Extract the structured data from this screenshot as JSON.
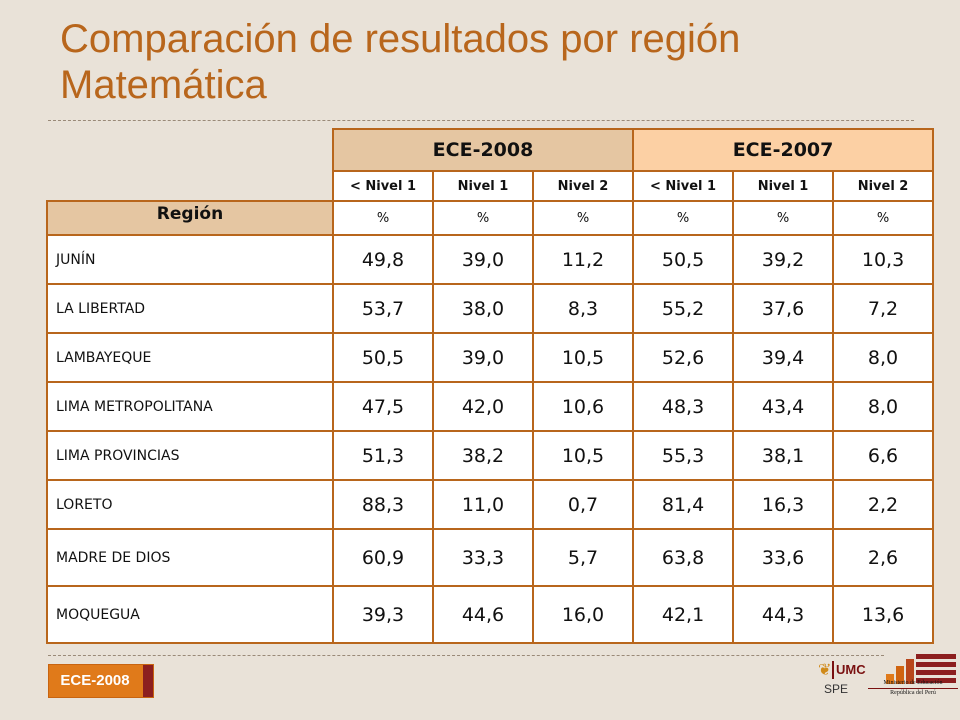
{
  "slide": {
    "title_line1": "Comparación de resultados por región",
    "title_line2": "Matemática"
  },
  "table": {
    "groups": [
      "ECE-2008",
      "ECE-2007"
    ],
    "levels": [
      "< Nivel 1",
      "Nivel 1",
      "Nivel 2",
      "< Nivel 1",
      "Nivel 1",
      "Nivel 2"
    ],
    "region_header": "Región",
    "unit": "%",
    "rows": [
      {
        "region": "JUNÍN",
        "values": [
          "49,8",
          "39,0",
          "11,2",
          "50,5",
          "39,2",
          "10,3"
        ]
      },
      {
        "region": "LA LIBERTAD",
        "values": [
          "53,7",
          "38,0",
          "8,3",
          "55,2",
          "37,6",
          "7,2"
        ]
      },
      {
        "region": "LAMBAYEQUE",
        "values": [
          "50,5",
          "39,0",
          "10,5",
          "52,6",
          "39,4",
          "8,0"
        ]
      },
      {
        "region": "LIMA METROPOLITANA",
        "values": [
          "47,5",
          "42,0",
          "10,6",
          "48,3",
          "43,4",
          "8,0"
        ]
      },
      {
        "region": "LIMA PROVINCIAS",
        "values": [
          "51,3",
          "38,2",
          "10,5",
          "55,3",
          "38,1",
          "6,6"
        ]
      },
      {
        "region": "LORETO",
        "values": [
          "88,3",
          "11,0",
          "0,7",
          "81,4",
          "16,3",
          "2,2"
        ]
      },
      {
        "region": "MADRE DE DIOS",
        "values": [
          "60,9",
          "33,3",
          "5,7",
          "63,8",
          "33,6",
          "2,6"
        ]
      },
      {
        "region": "MOQUEGUA",
        "values": [
          "39,3",
          "44,6",
          "16,0",
          "42,1",
          "44,3",
          "13,6"
        ]
      }
    ]
  },
  "footer": {
    "badge": "ECE-2008",
    "umc_logo_text": "UMC",
    "spe": "SPE",
    "ministry_text": "Ministerio de Educación",
    "republic_text": "República del Perú"
  },
  "colors": {
    "accent": "#b8661c",
    "header_2008": "#e5c6a2",
    "header_2007": "#fcd0a4",
    "badge": "#e07a1a",
    "brand_dark": "#7a1010"
  },
  "icons": [
    "umc-figure-icon",
    "minedu-bars-icon"
  ]
}
